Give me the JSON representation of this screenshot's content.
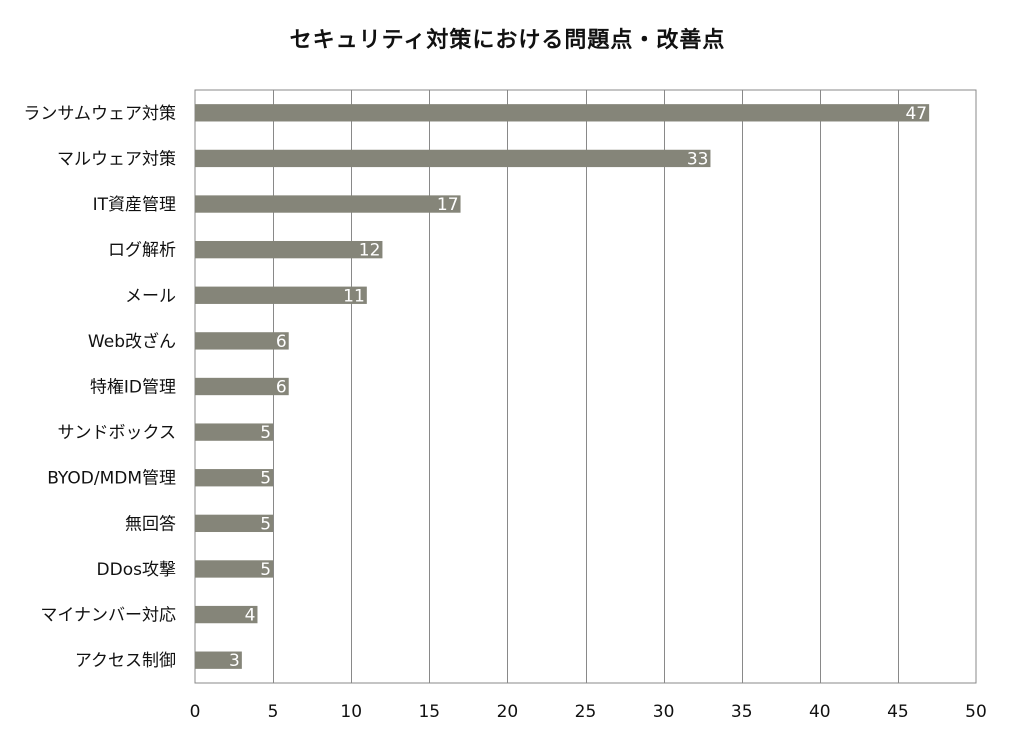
{
  "chart_data": {
    "type": "bar",
    "orientation": "horizontal",
    "title": "セキュリティ対策における問題点・改善点",
    "xlabel": "",
    "ylabel": "",
    "xlim": [
      0,
      50
    ],
    "x_ticks": [
      0,
      5,
      10,
      15,
      20,
      25,
      30,
      35,
      40,
      45,
      50
    ],
    "grid": "vertical",
    "legend": "none",
    "bar_color": "#858579",
    "categories": [
      "ランサムウェア対策",
      "マルウェア対策",
      "IT資産管理",
      "ログ解析",
      "メール",
      "Web改ざん",
      "特権ID管理",
      "サンドボックス",
      "BYOD/MDM管理",
      "無回答",
      "DDos攻撃",
      "マイナンバー対応",
      "アクセス制御"
    ],
    "values": [
      47,
      33,
      17,
      12,
      11,
      6,
      6,
      5,
      5,
      5,
      5,
      4,
      3
    ]
  }
}
